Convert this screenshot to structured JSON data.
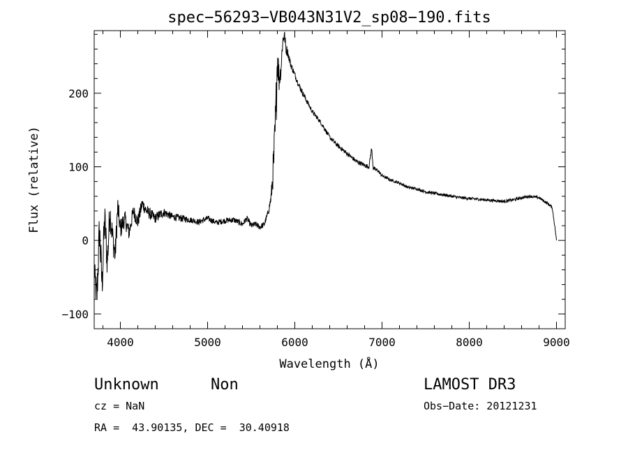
{
  "chart_data": {
    "type": "line",
    "title": "spec−56293−VB043N31V2_sp08−190.fits",
    "xlabel": "Wavelength (Å)",
    "ylabel": "Flux (relative)",
    "xlim": [
      3700,
      9100
    ],
    "ylim": [
      -120,
      285
    ],
    "x_ticks": [
      4000,
      5000,
      6000,
      7000,
      8000,
      9000
    ],
    "x_tick_labels": [
      "4000",
      "5000",
      "6000",
      "7000",
      "8000",
      "9000"
    ],
    "y_ticks": [
      -100,
      0,
      100,
      200
    ],
    "y_tick_labels": [
      "−100",
      "0",
      "100",
      "200"
    ],
    "grid": false,
    "series": [
      {
        "x": [
          3700,
          3730,
          3760,
          3790,
          3820,
          3850,
          3880,
          3910,
          3940,
          3970,
          4000,
          4050,
          4100,
          4150,
          4200,
          4250,
          4300,
          4350,
          4400,
          4450,
          4500,
          4600,
          4700,
          4800,
          4900,
          5000,
          5100,
          5200,
          5300,
          5400,
          5450,
          5500,
          5550,
          5600,
          5650,
          5700,
          5730,
          5760,
          5780,
          5800,
          5820,
          5840,
          5860,
          5880,
          5900,
          5920,
          5950,
          6000,
          6050,
          6100,
          6200,
          6300,
          6400,
          6500,
          6600,
          6700,
          6800,
          6850,
          6880,
          6900,
          6950,
          7000,
          7100,
          7200,
          7300,
          7400,
          7500,
          7600,
          7700,
          7800,
          7900,
          8000,
          8100,
          8200,
          8300,
          8400,
          8500,
          8600,
          8700,
          8800,
          8850,
          8900,
          8950,
          8980,
          9000
        ],
        "y": [
          -40,
          -80,
          15,
          -60,
          30,
          -30,
          40,
          5,
          -20,
          45,
          15,
          30,
          10,
          40,
          25,
          50,
          40,
          35,
          30,
          35,
          38,
          32,
          30,
          28,
          25,
          30,
          24,
          27,
          28,
          22,
          30,
          20,
          22,
          18,
          22,
          40,
          60,
          110,
          160,
          250,
          220,
          230,
          270,
          280,
          260,
          255,
          240,
          225,
          210,
          198,
          175,
          160,
          140,
          128,
          118,
          108,
          102,
          100,
          125,
          98,
          95,
          88,
          82,
          78,
          72,
          70,
          66,
          64,
          62,
          60,
          58,
          57,
          56,
          55,
          54,
          53,
          55,
          58,
          60,
          58,
          54,
          50,
          45,
          20,
          0
        ],
        "noise": [
          16,
          28,
          30,
          28,
          26,
          24,
          22,
          20,
          18,
          16,
          14,
          12,
          11,
          10,
          10,
          9,
          8,
          8,
          7,
          7,
          6,
          5,
          5,
          4,
          4,
          4,
          4,
          4,
          4,
          4,
          4,
          4,
          4,
          4,
          4,
          4,
          10,
          30,
          40,
          30,
          20,
          10,
          12,
          8,
          8,
          6,
          5,
          4,
          4,
          4,
          3,
          3,
          3,
          3,
          3,
          3,
          3,
          3,
          3,
          3,
          2,
          2,
          2,
          2,
          2,
          2,
          2,
          2,
          2,
          2,
          2,
          2,
          2,
          2,
          2,
          2,
          2,
          2,
          2,
          2,
          2,
          2,
          2,
          2,
          2
        ]
      }
    ]
  },
  "annotations": {
    "object_class": "Unknown",
    "object_subclass": "Non",
    "survey": "LAMOST DR3",
    "redshift": "cz = NaN",
    "obs_date": "Obs−Date: 20121231",
    "coords": "RA =  43.90135, DEC =  30.40918"
  }
}
